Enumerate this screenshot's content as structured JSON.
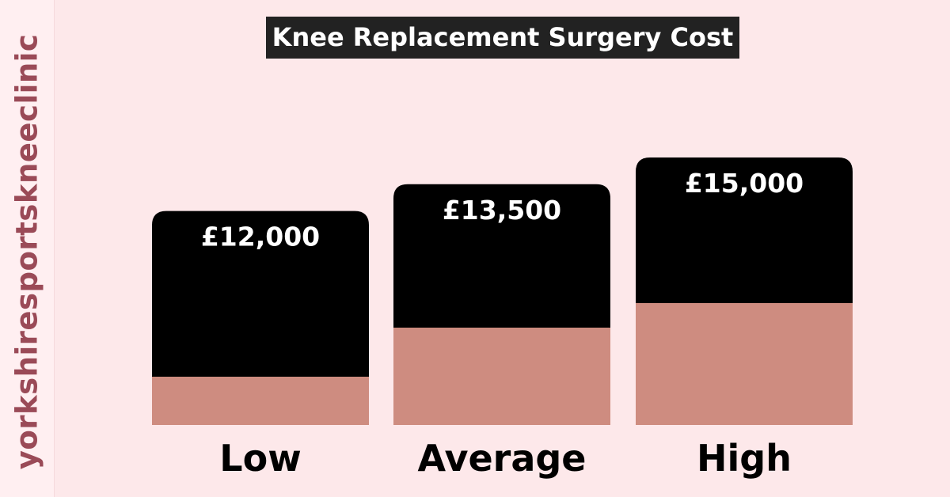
{
  "side_text": "yorkshiresportskneeclinic",
  "chart_data": {
    "type": "bar",
    "title": "Knee Replacement Surgery Cost",
    "categories": [
      "Low",
      "Average",
      "High"
    ],
    "values": [
      12000,
      13500,
      15000
    ],
    "value_labels": [
      "£12,000",
      "£13,500",
      "£15,000"
    ],
    "xlabel": "",
    "ylabel": "",
    "grid": false,
    "legend": "none"
  },
  "colors": {
    "background": "#fde8ea",
    "bar_top": "#000000",
    "bar_base": "#ce8c80",
    "title_bg": "#222222",
    "watermark": "#9a4a57"
  }
}
